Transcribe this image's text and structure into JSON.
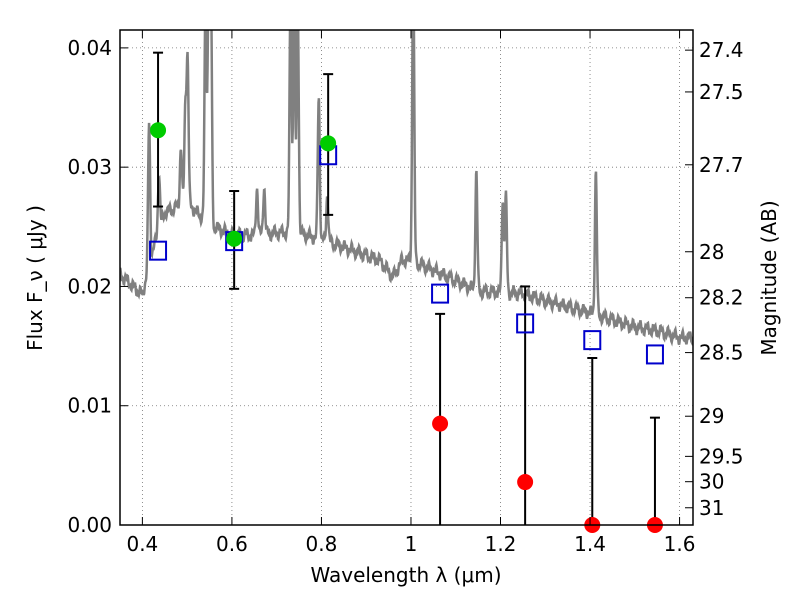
{
  "chart_data": {
    "type": "scatter",
    "xlabel": "Wavelength  λ (μm)",
    "ylabel": "Flux  F_ν  ( μJy )",
    "ylabel_right": "Magnitude (AB)",
    "xlim": [
      0.35,
      1.63
    ],
    "ylim": [
      0.0,
      0.0415
    ],
    "grid": true,
    "x_ticks": [
      {
        "value": 0.4,
        "label": "0.4"
      },
      {
        "value": 0.6,
        "label": "0.6"
      },
      {
        "value": 0.8,
        "label": "0.8"
      },
      {
        "value": 1.0,
        "label": "1"
      },
      {
        "value": 1.2,
        "label": "1.2"
      },
      {
        "value": 1.4,
        "label": "1.4"
      },
      {
        "value": 1.6,
        "label": "1.6"
      }
    ],
    "y_ticks": [
      {
        "value": 0.0,
        "label": "0.00"
      },
      {
        "value": 0.01,
        "label": "0.01"
      },
      {
        "value": 0.02,
        "label": "0.02"
      },
      {
        "value": 0.03,
        "label": "0.03"
      },
      {
        "value": 0.04,
        "label": "0.04"
      }
    ],
    "mag_ticks": [
      {
        "mag": 27.4,
        "label": "27.4"
      },
      {
        "mag": 27.5,
        "label": "27.5"
      },
      {
        "mag": 27.7,
        "label": "27.7"
      },
      {
        "mag": 28.0,
        "label": "28"
      },
      {
        "mag": 28.2,
        "label": "28.2"
      },
      {
        "mag": 28.5,
        "label": "28.5"
      },
      {
        "mag": 29.0,
        "label": "29"
      },
      {
        "mag": 29.5,
        "label": "29.5"
      },
      {
        "mag": 30.0,
        "label": "30"
      },
      {
        "mag": 31.0,
        "label": "31"
      }
    ],
    "series": [
      {
        "kind": "spectrum_line",
        "color": "#808080",
        "continuum": [
          [
            0.35,
            0.021
          ],
          [
            0.4,
            0.0193
          ],
          [
            0.42,
            0.0226
          ],
          [
            0.45,
            0.0262
          ],
          [
            0.5,
            0.027
          ],
          [
            0.55,
            0.0252
          ],
          [
            0.6,
            0.0243
          ],
          [
            0.65,
            0.0243
          ],
          [
            0.7,
            0.0245
          ],
          [
            0.75,
            0.0245
          ],
          [
            0.8,
            0.0239
          ],
          [
            0.85,
            0.0233
          ],
          [
            0.9,
            0.0226
          ],
          [
            0.93,
            0.0222
          ],
          [
            0.96,
            0.0208
          ],
          [
            0.98,
            0.0222
          ],
          [
            1.0,
            0.0222
          ],
          [
            1.03,
            0.0217
          ],
          [
            1.1,
            0.0205
          ],
          [
            1.15,
            0.0196
          ],
          [
            1.2,
            0.0195
          ],
          [
            1.25,
            0.0194
          ],
          [
            1.3,
            0.0188
          ],
          [
            1.4,
            0.0178
          ],
          [
            1.5,
            0.0166
          ],
          [
            1.55,
            0.0163
          ],
          [
            1.6,
            0.0157
          ],
          [
            1.63,
            0.0157
          ]
        ],
        "emission_lines": [
          [
            0.415,
            0.012
          ],
          [
            0.437,
            0.005
          ],
          [
            0.486,
            0.005
          ],
          [
            0.496,
            0.008
          ],
          [
            0.501,
            0.012
          ],
          [
            0.541,
            0.018
          ],
          [
            0.548,
            0.02
          ],
          [
            0.553,
            0.02
          ],
          [
            0.656,
            0.004
          ],
          [
            0.672,
            0.004
          ],
          [
            0.731,
            0.02
          ],
          [
            0.739,
            0.02
          ],
          [
            0.747,
            0.02
          ],
          [
            0.794,
            0.012
          ],
          [
            0.813,
            0.004
          ],
          [
            1.005,
            0.025
          ],
          [
            1.146,
            0.01
          ],
          [
            1.205,
            0.008
          ],
          [
            1.212,
            0.008
          ],
          [
            1.413,
            0.012
          ]
        ]
      },
      {
        "kind": "model_fluxes",
        "marker": "open-square",
        "color": "#0000cc",
        "points": [
          [
            0.435,
            0.023
          ],
          [
            0.605,
            0.0238
          ],
          [
            0.815,
            0.031
          ],
          [
            1.065,
            0.0194
          ],
          [
            1.255,
            0.0169
          ],
          [
            1.405,
            0.0155
          ],
          [
            1.545,
            0.0143
          ]
        ]
      },
      {
        "kind": "detections",
        "marker": "filled-circle",
        "color": "#00cc00",
        "points": [
          {
            "x": 0.435,
            "y": 0.0331,
            "lo": 0.0267,
            "hi": 0.0396
          },
          {
            "x": 0.605,
            "y": 0.024,
            "lo": 0.0198,
            "hi": 0.028
          },
          {
            "x": 0.815,
            "y": 0.032,
            "lo": 0.026,
            "hi": 0.0378
          }
        ]
      },
      {
        "kind": "non_detections",
        "marker": "filled-circle",
        "color": "#ff0000",
        "points": [
          {
            "x": 1.065,
            "y": 0.0085,
            "lo": 0.0,
            "hi": 0.0177
          },
          {
            "x": 1.255,
            "y": 0.0036,
            "lo": 0.0,
            "hi": 0.02
          },
          {
            "x": 1.405,
            "y": 0.0,
            "lo": 0.0,
            "hi": 0.014
          },
          {
            "x": 1.545,
            "y": 0.0,
            "lo": 0.0,
            "hi": 0.009
          }
        ]
      }
    ]
  }
}
